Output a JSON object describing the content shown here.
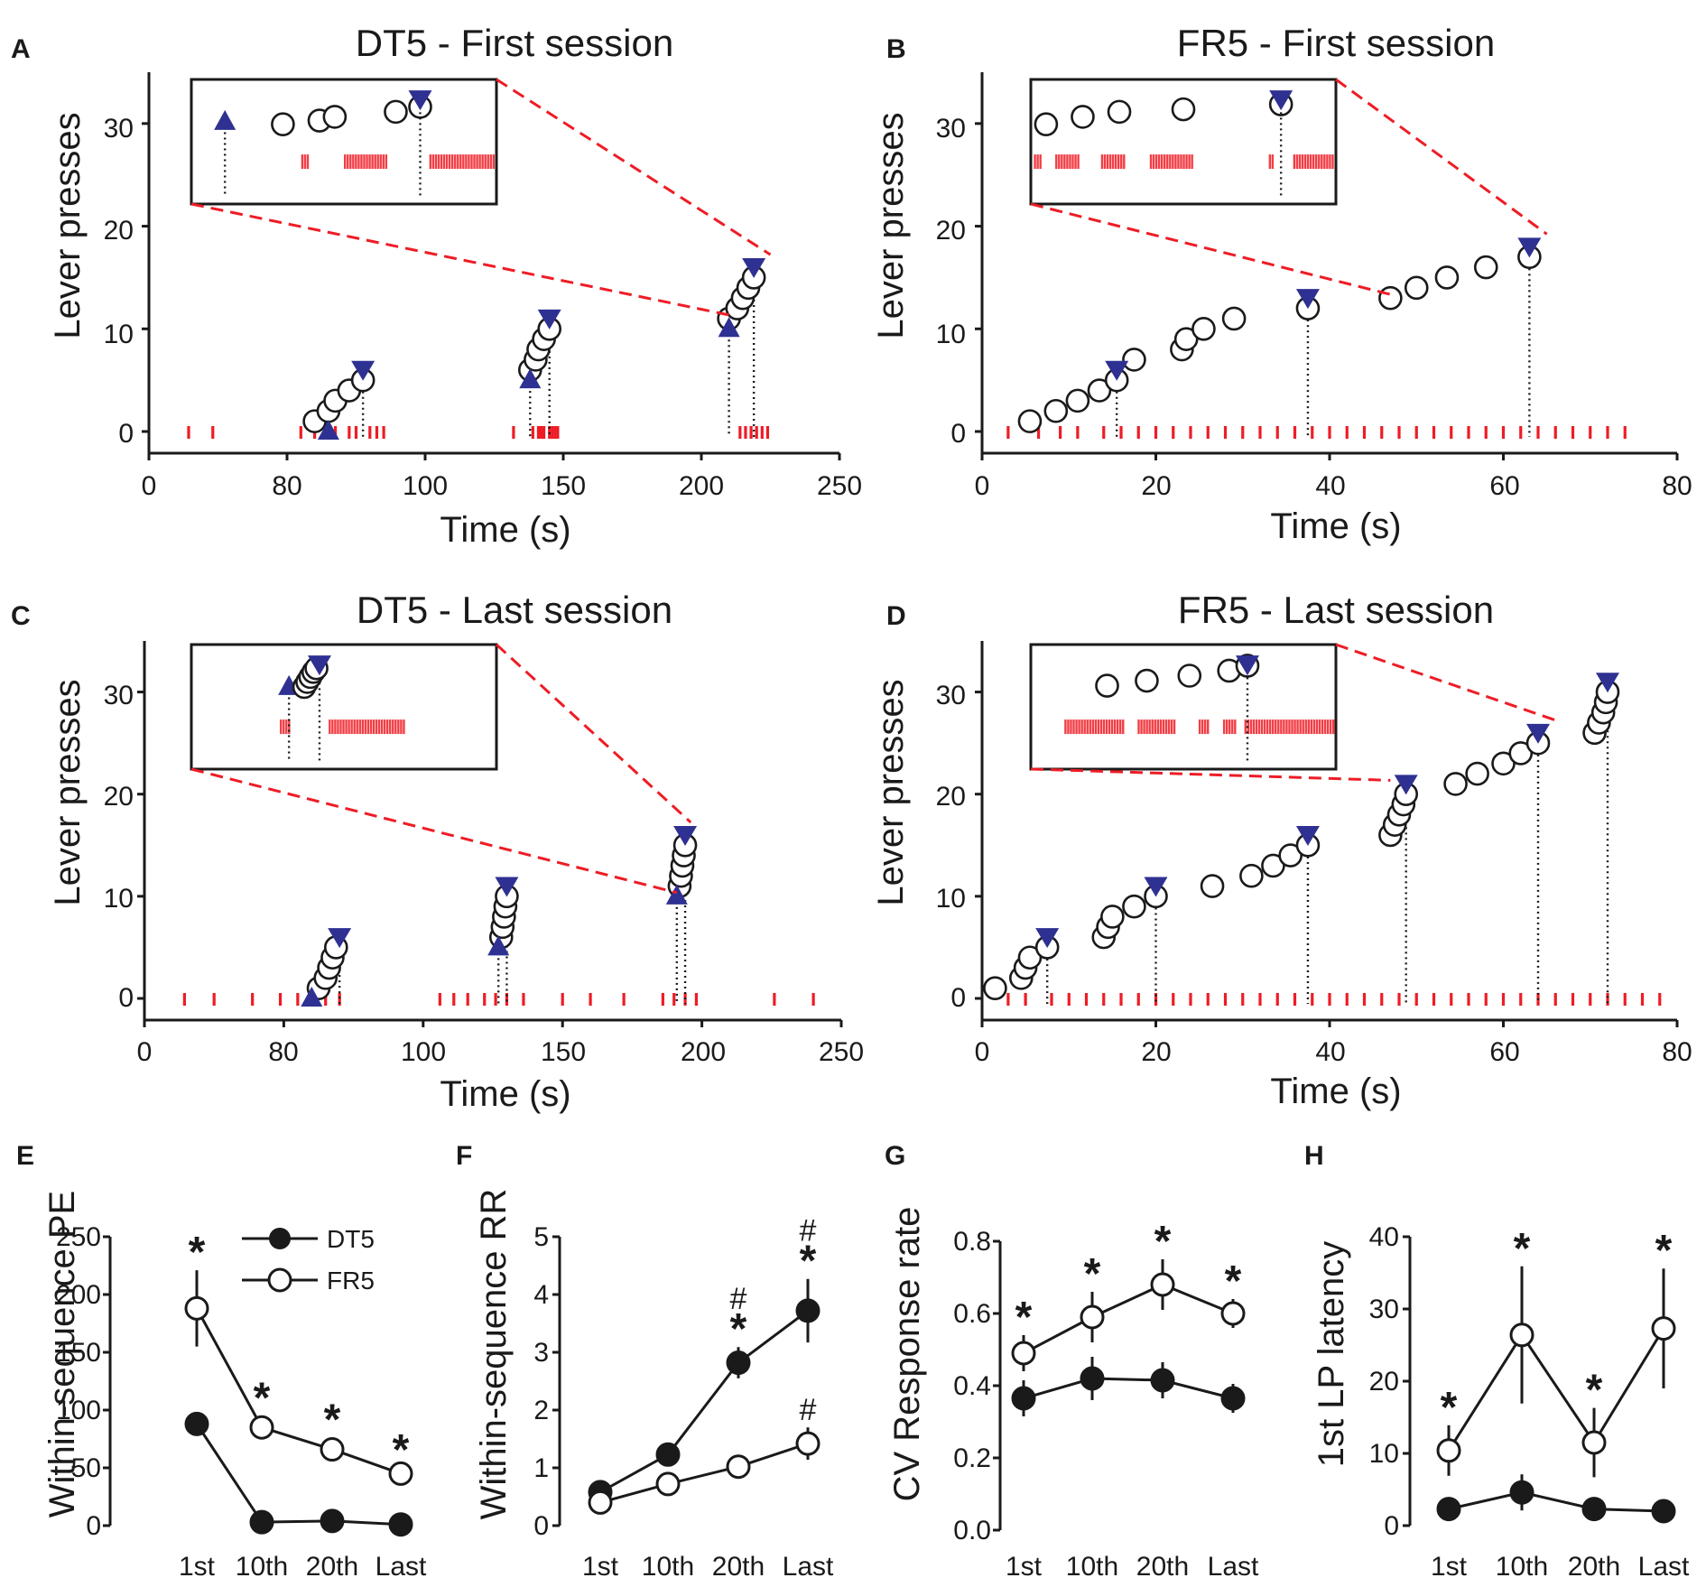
{
  "colors": {
    "triangle": "#2e3192",
    "raster": "#ee1c25",
    "zoom": "#ee1c25",
    "axis": "#1a1a1a"
  },
  "legend": {
    "dt5": "DT5",
    "fr5": "FR5"
  },
  "panels": [
    {
      "letter": "A",
      "title": "DT5 - First session",
      "xlabel": "Time (s)",
      "ylabel": "Lever presses",
      "xticks": [
        "0",
        "80",
        "100",
        "150",
        "200",
        "250"
      ],
      "yticks": [
        "0",
        "10",
        "20",
        "30"
      ]
    },
    {
      "letter": "B",
      "title": "FR5 - First session",
      "xlabel": "Time (s)",
      "ylabel": "Lever presses",
      "xticks": [
        "0",
        "20",
        "40",
        "60",
        "80"
      ],
      "yticks": [
        "0",
        "10",
        "20",
        "30"
      ]
    },
    {
      "letter": "C",
      "title": "DT5 - Last session",
      "xlabel": "Time (s)",
      "ylabel": "Lever presses",
      "xticks": [
        "0",
        "80",
        "100",
        "150",
        "200",
        "250"
      ],
      "yticks": [
        "0",
        "10",
        "20",
        "30"
      ]
    },
    {
      "letter": "D",
      "title": "FR5 - Last session",
      "xlabel": "Time (s)",
      "ylabel": "Lever presses",
      "xticks": [
        "0",
        "20",
        "40",
        "60",
        "80"
      ],
      "yticks": [
        "0",
        "10",
        "20",
        "30"
      ]
    }
  ],
  "summary": [
    {
      "letter": "E",
      "ylabel": "Within-sequence PE",
      "yticks": [
        "0",
        "50",
        "100",
        "150",
        "200",
        "250"
      ],
      "categories": [
        "1st",
        "10th",
        "20th",
        "Last"
      ]
    },
    {
      "letter": "F",
      "ylabel": "Within-sequence RR",
      "yticks": [
        "0",
        "1",
        "2",
        "3",
        "4",
        "5"
      ],
      "categories": [
        "1st",
        "10th",
        "20th",
        "Last"
      ]
    },
    {
      "letter": "G",
      "ylabel": "CV Response rate",
      "yticks": [
        "0.0",
        "0.2",
        "0.4",
        "0.6",
        "0.8"
      ],
      "categories": [
        "1st",
        "10th",
        "20th",
        "Last"
      ]
    },
    {
      "letter": "H",
      "ylabel": "1st LP latency",
      "yticks": [
        "0",
        "10",
        "20",
        "30",
        "40"
      ],
      "categories": [
        "1st",
        "10th",
        "20th",
        "Last"
      ]
    }
  ],
  "chart_data": [
    {
      "type": "scatter",
      "panel": "A",
      "title": "DT5 - First session",
      "xlabel": "Time (s)",
      "ylabel": "Lever presses",
      "xlim": [
        0,
        250
      ],
      "ylim": [
        0,
        35
      ],
      "presses": [
        [
          84,
          1
        ],
        [
          86,
          2
        ],
        [
          87,
          3
        ],
        [
          89,
          4
        ],
        [
          91,
          5
        ],
        [
          138,
          6
        ],
        [
          140,
          7
        ],
        [
          141,
          8
        ],
        [
          143,
          9
        ],
        [
          145,
          10
        ],
        [
          210,
          11
        ],
        [
          213,
          12
        ],
        [
          215,
          13
        ],
        [
          217,
          14
        ],
        [
          219,
          15
        ]
      ],
      "sequence_start": [
        [
          86,
          0
        ],
        [
          138,
          5
        ],
        [
          210,
          10
        ]
      ],
      "reward": [
        [
          91,
          6
        ],
        [
          145,
          11
        ],
        [
          219,
          16
        ]
      ],
      "raster_times": [
        23,
        37,
        82,
        84,
        86,
        87,
        89,
        90,
        92,
        93,
        94,
        132,
        139,
        141,
        142,
        143,
        145,
        146,
        147,
        148,
        214,
        216,
        218,
        220,
        222,
        224
      ]
    },
    {
      "type": "scatter",
      "panel": "B",
      "title": "FR5 - First session",
      "xlabel": "Time (s)",
      "ylabel": "Lever presses",
      "xlim": [
        0,
        80
      ],
      "ylim": [
        0,
        35
      ],
      "presses": [
        [
          5.5,
          1
        ],
        [
          8.5,
          2
        ],
        [
          11,
          3
        ],
        [
          13.5,
          4
        ],
        [
          15.5,
          5
        ],
        [
          17.5,
          7
        ],
        [
          23,
          8
        ],
        [
          23.5,
          9
        ],
        [
          25.5,
          10
        ],
        [
          29,
          11
        ],
        [
          37.5,
          12
        ],
        [
          47,
          13
        ],
        [
          50,
          14
        ],
        [
          53.5,
          15
        ],
        [
          58,
          16
        ],
        [
          63,
          17
        ]
      ],
      "reward": [
        [
          15.5,
          6
        ],
        [
          37.5,
          13
        ],
        [
          63,
          18
        ]
      ],
      "raster_times": [
        3,
        6.5,
        9,
        11,
        14,
        16,
        18,
        20,
        22,
        24,
        26,
        28,
        30,
        32,
        34,
        36,
        38,
        40,
        42,
        44,
        46,
        48,
        50,
        52,
        54,
        56,
        58,
        60,
        62,
        64,
        66,
        68,
        70,
        72,
        74
      ]
    },
    {
      "type": "scatter",
      "panel": "C",
      "title": "DT5 - Last session",
      "xlabel": "Time (s)",
      "ylabel": "Lever presses",
      "xlim": [
        0,
        250
      ],
      "ylim": [
        0,
        35
      ],
      "presses": [
        [
          85,
          1
        ],
        [
          86,
          2
        ],
        [
          86.5,
          3
        ],
        [
          87,
          4
        ],
        [
          87.5,
          5
        ],
        [
          128,
          6
        ],
        [
          128.5,
          7
        ],
        [
          129,
          8
        ],
        [
          129.5,
          9
        ],
        [
          130,
          10
        ],
        [
          192,
          11
        ],
        [
          192.5,
          12
        ],
        [
          193,
          13
        ],
        [
          193.5,
          14
        ],
        [
          194,
          15
        ]
      ],
      "sequence_start": [
        [
          84,
          0
        ],
        [
          127,
          5
        ],
        [
          191,
          10
        ]
      ],
      "reward": [
        [
          88,
          6
        ],
        [
          130,
          11
        ],
        [
          194,
          16
        ]
      ],
      "raster_times": [
        23,
        40,
        62,
        78,
        82,
        86,
        88,
        106,
        111,
        116,
        122,
        126,
        130,
        136,
        150,
        160,
        172,
        186,
        190,
        194,
        198,
        226,
        240
      ]
    },
    {
      "type": "scatter",
      "panel": "D",
      "title": "FR5 - Last session",
      "xlabel": "Time (s)",
      "ylabel": "Lever presses",
      "xlim": [
        0,
        80
      ],
      "ylim": [
        0,
        35
      ],
      "presses": [
        [
          1.5,
          1
        ],
        [
          4.5,
          2
        ],
        [
          5,
          3
        ],
        [
          5.5,
          4
        ],
        [
          7.5,
          5
        ],
        [
          14,
          6
        ],
        [
          14.5,
          7
        ],
        [
          15,
          8
        ],
        [
          17.5,
          9
        ],
        [
          20,
          10
        ],
        [
          26.5,
          11
        ],
        [
          31,
          12
        ],
        [
          33.5,
          13
        ],
        [
          35.5,
          14
        ],
        [
          37.5,
          15
        ],
        [
          47,
          16
        ],
        [
          47.5,
          17
        ],
        [
          48,
          18
        ],
        [
          48.5,
          19
        ],
        [
          48.8,
          20
        ],
        [
          54.5,
          21
        ],
        [
          57,
          22
        ],
        [
          60,
          23
        ],
        [
          62,
          24
        ],
        [
          64,
          25
        ],
        [
          70.5,
          26
        ],
        [
          71,
          27
        ],
        [
          71.5,
          28
        ],
        [
          71.8,
          29
        ],
        [
          72,
          30
        ]
      ],
      "reward": [
        [
          7.5,
          6
        ],
        [
          20,
          11
        ],
        [
          37.5,
          16
        ],
        [
          48.8,
          21
        ],
        [
          64,
          26
        ],
        [
          72,
          31
        ]
      ],
      "raster_times": [
        3,
        5,
        8,
        10,
        12,
        14,
        16,
        18,
        20,
        22,
        24,
        26,
        28,
        30,
        32,
        34,
        36,
        38,
        40,
        42,
        44,
        46,
        48,
        50,
        52,
        54,
        56,
        58,
        60,
        62,
        64,
        66,
        68,
        70,
        72,
        74,
        76,
        78
      ]
    },
    {
      "type": "line",
      "panel": "E",
      "ylabel": "Within-sequence PE",
      "categories": [
        "1st",
        "10th",
        "20th",
        "Last"
      ],
      "ylim": [
        0,
        250
      ],
      "series": [
        {
          "name": "DT5",
          "values": [
            88,
            3,
            4,
            1
          ],
          "err": [
            6,
            2,
            3,
            1
          ]
        },
        {
          "name": "FR5",
          "values": [
            188,
            85,
            66,
            45
          ],
          "err": [
            33,
            10,
            10,
            5
          ]
        }
      ],
      "sig_star": [
        true,
        true,
        true,
        true
      ]
    },
    {
      "type": "line",
      "panel": "F",
      "ylabel": "Within-sequence RR",
      "categories": [
        "1st",
        "10th",
        "20th",
        "Last"
      ],
      "ylim": [
        0,
        5
      ],
      "series": [
        {
          "name": "DT5",
          "values": [
            0.58,
            1.23,
            2.82,
            3.72
          ],
          "err": [
            0.06,
            0.2,
            0.27,
            0.55
          ]
        },
        {
          "name": "FR5",
          "values": [
            0.4,
            0.72,
            1.02,
            1.42
          ],
          "err": [
            0.05,
            0.08,
            0.1,
            0.28
          ]
        }
      ],
      "sig_star": [
        false,
        false,
        true,
        true
      ],
      "hash_dt5": [
        false,
        false,
        true,
        true
      ],
      "hash_fr5": [
        false,
        false,
        false,
        true
      ]
    },
    {
      "type": "line",
      "panel": "G",
      "ylabel": "CV Response rate",
      "categories": [
        "1st",
        "10th",
        "20th",
        "Last"
      ],
      "ylim": [
        0,
        0.8
      ],
      "series": [
        {
          "name": "DT5",
          "values": [
            0.365,
            0.42,
            0.415,
            0.365
          ],
          "err": [
            0.05,
            0.06,
            0.05,
            0.04
          ]
        },
        {
          "name": "FR5",
          "values": [
            0.49,
            0.59,
            0.68,
            0.6
          ],
          "err": [
            0.05,
            0.07,
            0.07,
            0.04
          ]
        }
      ],
      "sig_star": [
        true,
        true,
        true,
        true
      ]
    },
    {
      "type": "line",
      "panel": "H",
      "ylabel": "1st LP latency",
      "categories": [
        "1st",
        "10th",
        "20th",
        "Last"
      ],
      "ylim": [
        0,
        40
      ],
      "series": [
        {
          "name": "DT5",
          "values": [
            2.3,
            4.6,
            2.3,
            2.0
          ],
          "err": [
            0.6,
            2.5,
            0.6,
            0.5
          ]
        },
        {
          "name": "FR5",
          "values": [
            10.4,
            26.4,
            11.5,
            27.3
          ],
          "err": [
            3.5,
            9.5,
            4.8,
            8.3
          ]
        }
      ],
      "sig_star": [
        true,
        true,
        true,
        true
      ]
    }
  ]
}
